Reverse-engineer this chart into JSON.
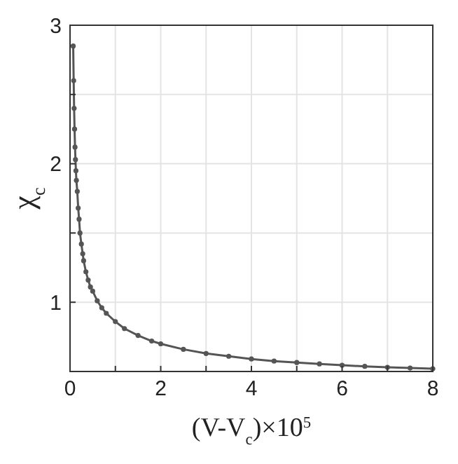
{
  "chart_data": {
    "type": "line",
    "xlabel": "(V-V$_{c}$)×10$^{5}$",
    "ylabel": "χ$_{c}$",
    "xlim": [
      0,
      8
    ],
    "ylim": [
      0.5,
      3
    ],
    "xticks": [
      0,
      {
        "value": 1,
        "label": null
      },
      2,
      {
        "value": 3,
        "label": null
      },
      4,
      {
        "value": 5,
        "label": null
      },
      6,
      {
        "value": 7,
        "label": null
      },
      8
    ],
    "yticks": [
      {
        "value": 0.5,
        "label": null
      },
      1,
      {
        "value": 1.5,
        "label": null
      },
      2,
      {
        "value": 2.5,
        "label": null
      },
      3
    ],
    "grid": true,
    "marker": "circle",
    "line_style": "solid",
    "series": [
      {
        "color": "#555555",
        "x": [
          0.07,
          0.08,
          0.09,
          0.1,
          0.11,
          0.12,
          0.13,
          0.14,
          0.16,
          0.18,
          0.2,
          0.22,
          0.25,
          0.28,
          0.3,
          0.35,
          0.4,
          0.45,
          0.5,
          0.6,
          0.7,
          0.8,
          1,
          1.2,
          1.5,
          1.8,
          2,
          2.5,
          3,
          3.5,
          4,
          4.5,
          5,
          5.5,
          6,
          6.5,
          7,
          7.5,
          8
        ],
        "values": [
          2.85,
          2.6,
          2.4,
          2.25,
          2.12,
          2.03,
          1.95,
          1.88,
          1.8,
          1.68,
          1.6,
          1.5,
          1.42,
          1.35,
          1.3,
          1.22,
          1.16,
          1.11,
          1.08,
          1.01,
          0.96,
          0.92,
          0.86,
          0.81,
          0.76,
          0.72,
          0.7,
          0.66,
          0.63,
          0.61,
          0.59,
          0.575,
          0.565,
          0.555,
          0.545,
          0.537,
          0.53,
          0.525,
          0.52
        ]
      }
    ]
  }
}
